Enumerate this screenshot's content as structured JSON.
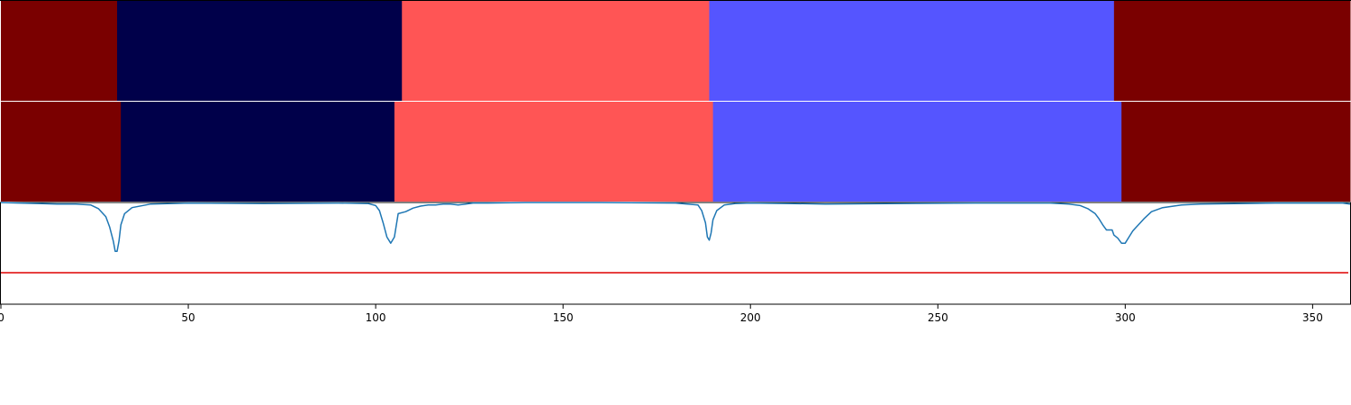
{
  "chart_data": {
    "type": "segmentation-strip-with-line",
    "xlim": [
      0,
      360
    ],
    "xticks": [
      0,
      50,
      100,
      150,
      200,
      250,
      300,
      350
    ],
    "xtick_labels": [
      "0",
      "50",
      "100",
      "150",
      "200",
      "250",
      "300",
      "350"
    ],
    "grid": false,
    "strips": [
      {
        "segments": [
          {
            "start": 0,
            "end": 31,
            "color": "#7a0000"
          },
          {
            "start": 31,
            "end": 107,
            "color": "#00004a"
          },
          {
            "start": 107,
            "end": 189,
            "color": "#ff5555"
          },
          {
            "start": 189,
            "end": 297,
            "color": "#5555ff"
          },
          {
            "start": 297,
            "end": 360,
            "color": "#7a0000"
          }
        ]
      },
      {
        "segments": [
          {
            "start": 0,
            "end": 32,
            "color": "#7a0000"
          },
          {
            "start": 32,
            "end": 105,
            "color": "#00004a"
          },
          {
            "start": 105,
            "end": 190,
            "color": "#ff5555"
          },
          {
            "start": 190,
            "end": 299,
            "color": "#5555ff"
          },
          {
            "start": 299,
            "end": 360,
            "color": "#7a0000"
          }
        ]
      }
    ],
    "line_panel": {
      "ylim": [
        0,
        1
      ],
      "threshold": {
        "value": 0.31,
        "color": "#dd0000"
      },
      "series_color": "#1f77b4",
      "x": [
        0,
        5,
        10,
        15,
        20,
        24,
        26,
        28,
        29,
        30,
        30.5,
        31,
        31.5,
        32,
        33,
        35,
        40,
        50,
        70,
        90,
        98,
        100,
        101,
        102,
        103,
        104,
        105,
        106,
        108,
        110,
        112,
        114,
        116,
        118,
        120,
        122,
        124,
        126,
        130,
        140,
        160,
        180,
        186,
        187,
        188,
        188.5,
        189,
        189.5,
        190,
        191,
        193,
        196,
        200,
        210,
        220,
        240,
        260,
        280,
        285,
        288,
        290,
        292,
        293,
        294,
        295,
        296,
        296.5,
        297,
        298,
        299,
        300,
        301,
        302,
        303,
        304,
        305,
        307,
        310,
        315,
        320,
        340,
        355,
        358,
        360
      ],
      "y": [
        1.0,
        0.995,
        0.99,
        0.985,
        0.985,
        0.975,
        0.94,
        0.86,
        0.76,
        0.62,
        0.52,
        0.52,
        0.62,
        0.78,
        0.89,
        0.95,
        0.985,
        0.995,
        0.99,
        0.995,
        0.99,
        0.97,
        0.92,
        0.8,
        0.66,
        0.6,
        0.66,
        0.89,
        0.91,
        0.945,
        0.965,
        0.975,
        0.975,
        0.985,
        0.985,
        0.975,
        0.985,
        0.995,
        0.995,
        1.0,
        1.0,
        0.995,
        0.975,
        0.92,
        0.8,
        0.66,
        0.63,
        0.7,
        0.83,
        0.92,
        0.975,
        0.99,
        0.995,
        0.99,
        0.985,
        0.99,
        0.995,
        0.995,
        0.985,
        0.97,
        0.94,
        0.89,
        0.84,
        0.78,
        0.73,
        0.73,
        0.73,
        0.68,
        0.65,
        0.6,
        0.6,
        0.66,
        0.72,
        0.76,
        0.8,
        0.84,
        0.91,
        0.95,
        0.975,
        0.985,
        0.995,
        0.995,
        0.995,
        0.985
      ]
    }
  }
}
